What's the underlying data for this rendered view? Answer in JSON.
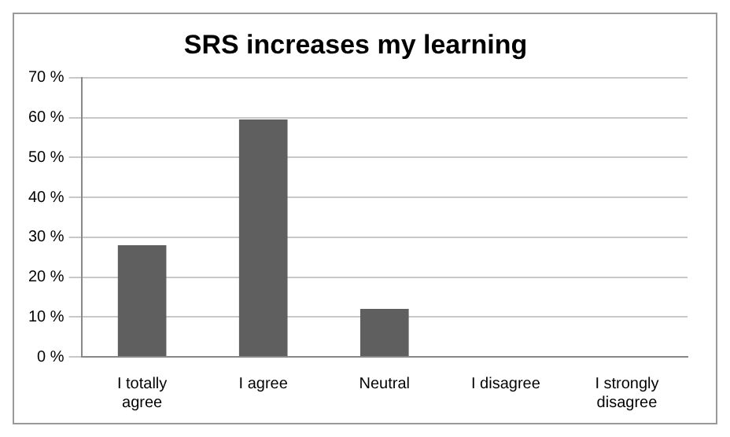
{
  "chart_data": {
    "type": "bar",
    "title": "SRS increases my learning",
    "categories": [
      "I totally agree",
      "I agree",
      "Neutral",
      "I disagree",
      "I strongly disagree"
    ],
    "values": [
      28,
      59.5,
      12,
      0,
      0
    ],
    "color": "#5f5f5f",
    "ylim": [
      0,
      70
    ],
    "yticks": [
      {
        "value": 0,
        "label": "0 %"
      },
      {
        "value": 10,
        "label": "10 %"
      },
      {
        "value": 20,
        "label": "20 %"
      },
      {
        "value": 30,
        "label": "30 %"
      },
      {
        "value": 40,
        "label": "40 %"
      },
      {
        "value": 50,
        "label": "50 %"
      },
      {
        "value": 60,
        "label": "60 %"
      },
      {
        "value": 70,
        "label": "70 %"
      }
    ],
    "grid": "y"
  }
}
